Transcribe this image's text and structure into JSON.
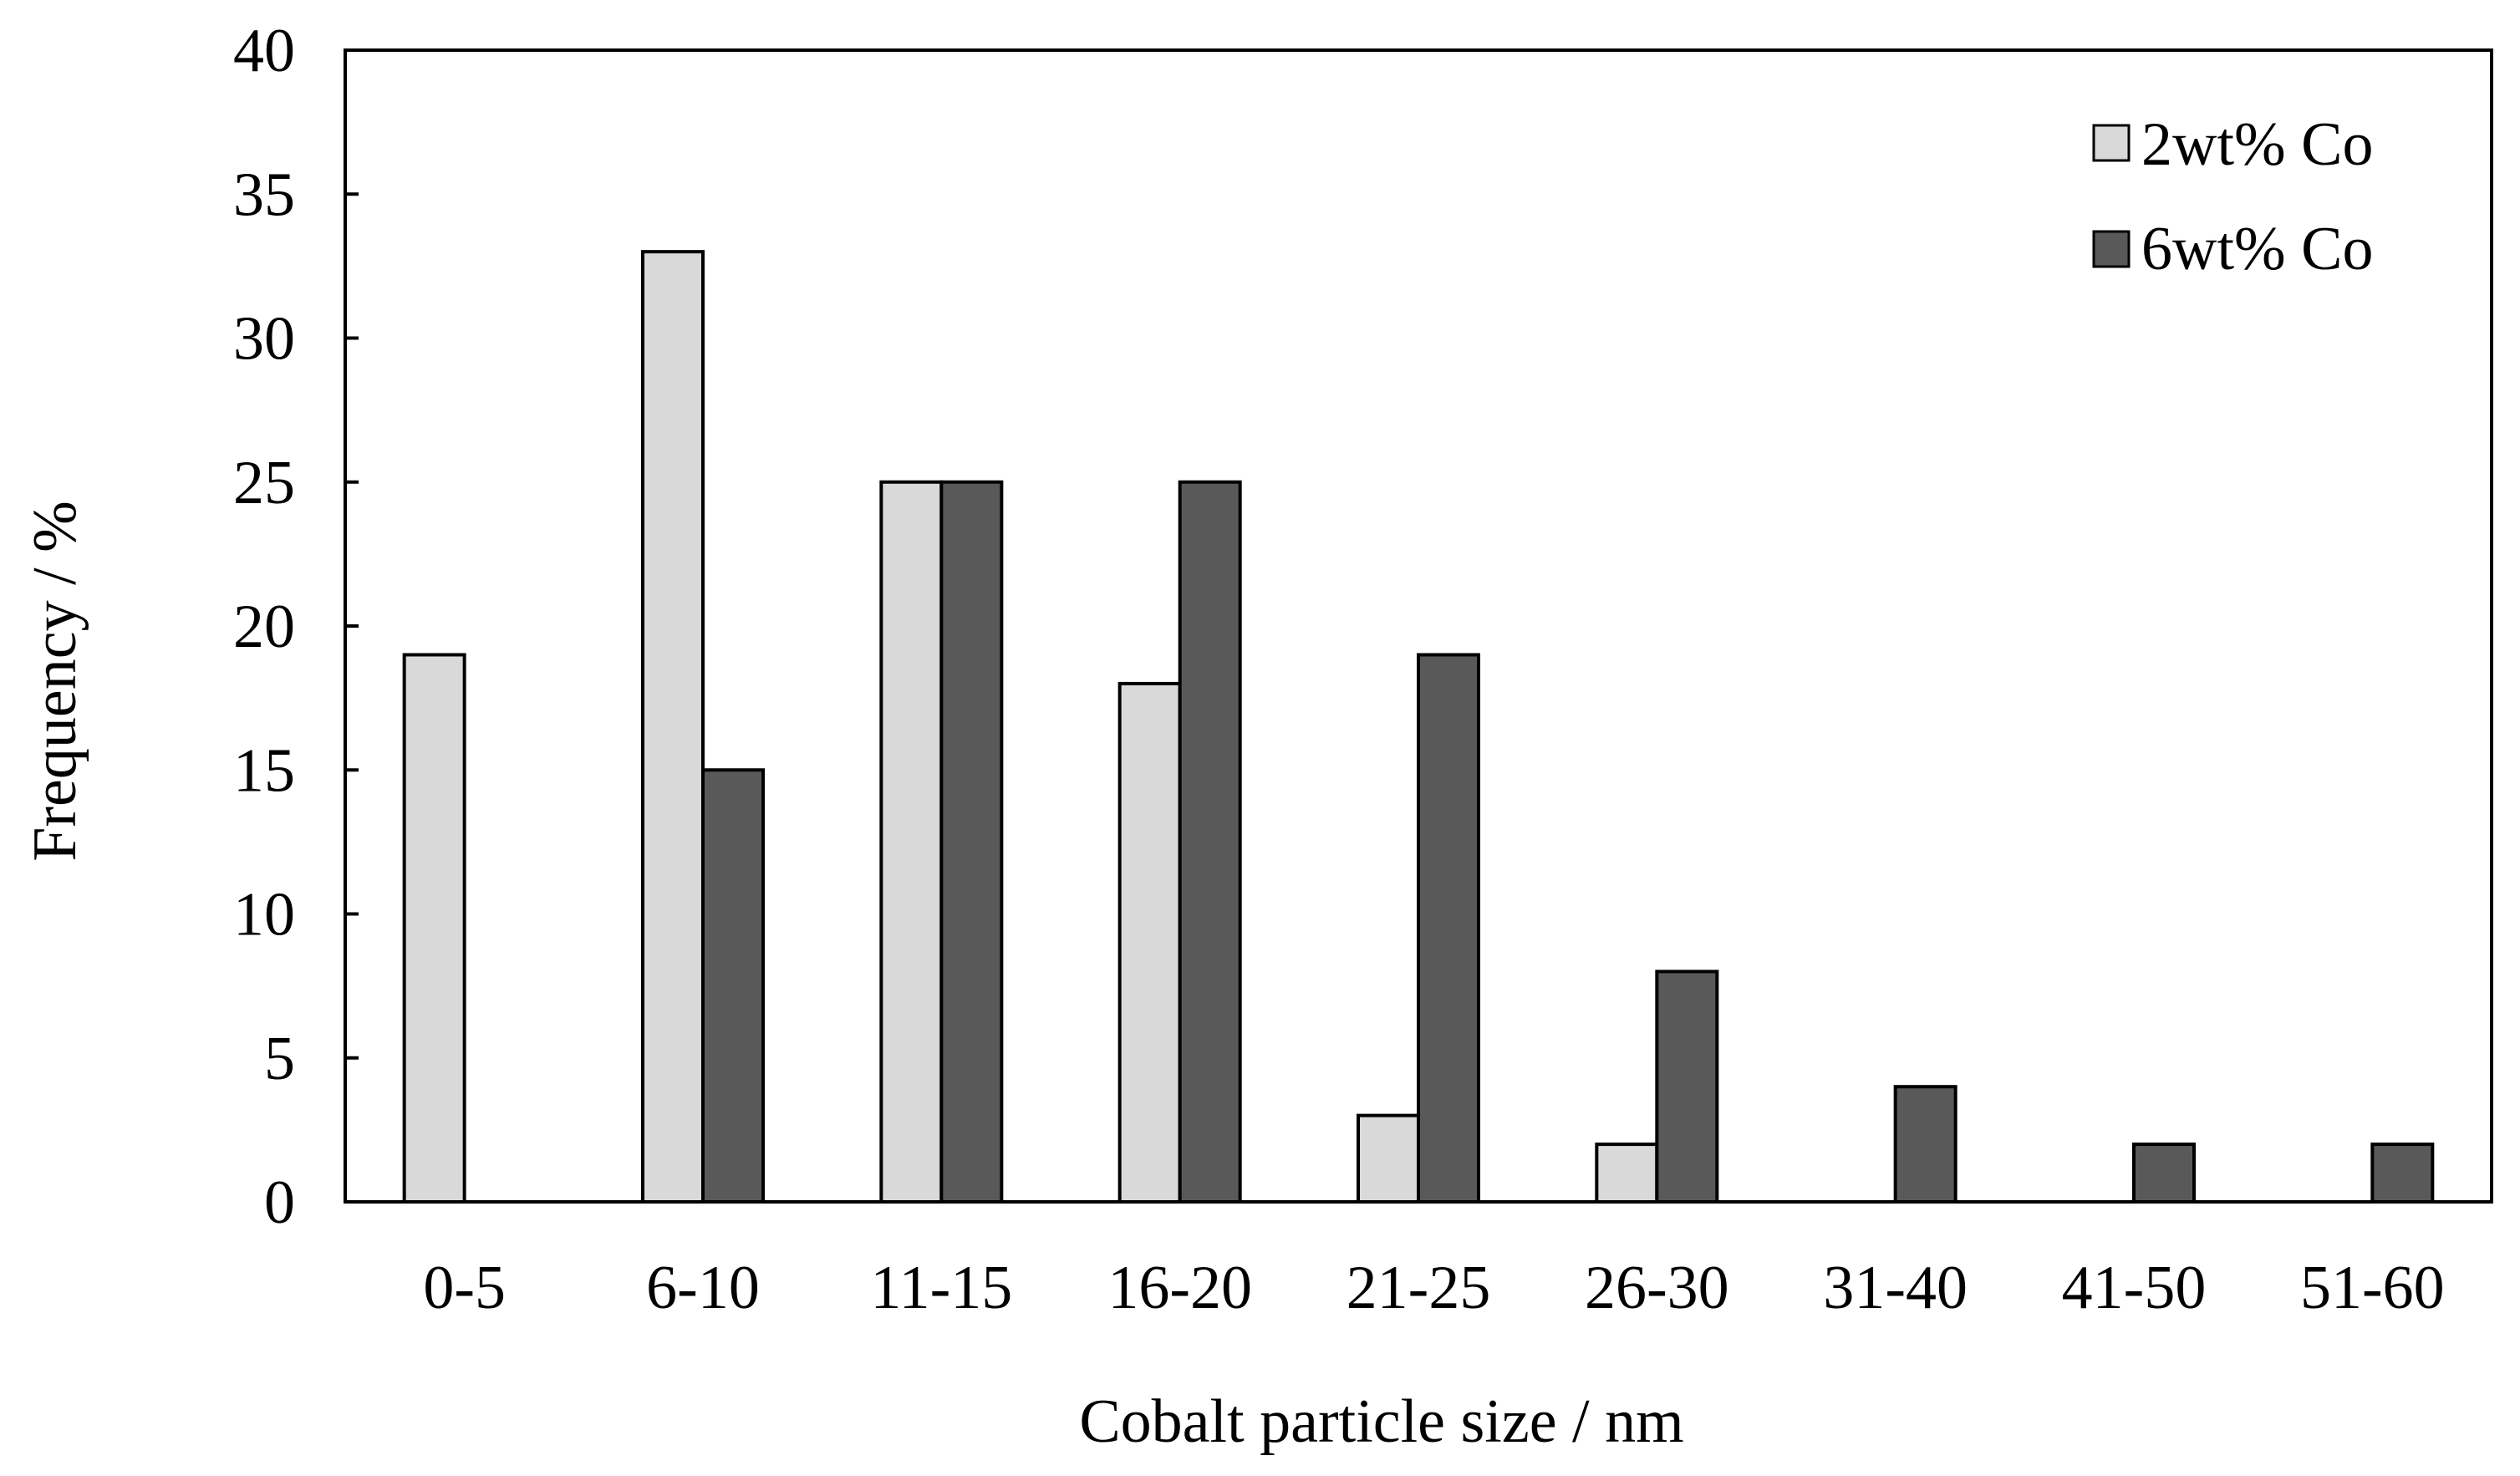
{
  "chart_data": {
    "type": "bar",
    "title": "",
    "xlabel": "Cobalt particle size / nm",
    "ylabel": "Frequency / %",
    "categories": [
      "0-5",
      "6-10",
      "11-15",
      "16-20",
      "21-25",
      "26-30",
      "31-40",
      "41-50",
      "51-60"
    ],
    "series": [
      {
        "name": "2wt% Co",
        "color": "#d9d9d9",
        "values": [
          19,
          33,
          25,
          18,
          3,
          2,
          0,
          0,
          0
        ]
      },
      {
        "name": "6wt% Co",
        "color": "#595959",
        "values": [
          0,
          15,
          25,
          25,
          19,
          8,
          4,
          2,
          2
        ]
      }
    ],
    "ylim": [
      0,
      40
    ],
    "yticks": [
      0,
      5,
      10,
      15,
      20,
      25,
      30,
      35,
      40
    ],
    "grid": false,
    "legend_position": "top-right"
  }
}
